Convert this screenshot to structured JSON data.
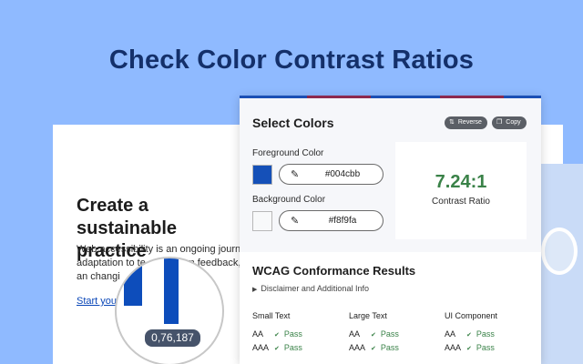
{
  "headline": "Check Color Contrast Ratios",
  "background_page": {
    "title": "Create a sustainable practice",
    "body": "Web accessibility is an ongoing journe adaptation to te advancem feedback, an changi",
    "link": "Start your a"
  },
  "magnifier": {
    "readout": "0,76,187",
    "bar_color": "#0d4dbb"
  },
  "panel": {
    "select_colors": {
      "title": "Select Colors",
      "reverse_button": {
        "icon": "swap-icon",
        "label": "Reverse"
      },
      "copy_button": {
        "icon": "copy-icon",
        "label": "Copy"
      },
      "foreground": {
        "label": "Foreground Color",
        "value": "#004cbb",
        "swatch": "#1550b8",
        "icon": "eyedropper-icon"
      },
      "background": {
        "label": "Background Color",
        "value": "#f8f9fa",
        "swatch": "#f8f9fa",
        "icon": "eyedropper-icon"
      },
      "ratio": {
        "value": "7.24:1",
        "label": "Contrast Ratio",
        "color": "#3a8248"
      }
    },
    "results": {
      "title": "WCAG Conformance Results",
      "disclaimer": "Disclaimer and Additional Info",
      "columns": [
        {
          "heading": "Small Text",
          "rows": [
            {
              "level": "AA",
              "result": "Pass"
            },
            {
              "level": "AAA",
              "result": "Pass"
            }
          ]
        },
        {
          "heading": "Large Text",
          "rows": [
            {
              "level": "AA",
              "result": "Pass"
            },
            {
              "level": "AAA",
              "result": "Pass"
            }
          ]
        },
        {
          "heading": "UI Component",
          "rows": [
            {
              "level": "AA",
              "result": "Pass"
            },
            {
              "level": "AAA",
              "result": "Pass"
            }
          ]
        }
      ]
    }
  },
  "colors": {
    "background": "#8fbaff",
    "headline": "#14306a",
    "panel_accent": "#1b4fb5",
    "pass": "#3a8248"
  }
}
